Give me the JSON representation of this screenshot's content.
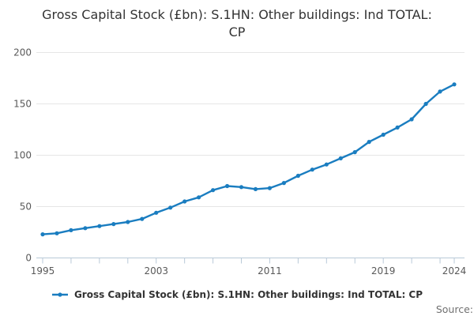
{
  "title": "Gross Capital Stock (£bn): S.1HN: Other buildings: Ind TOTAL: CP",
  "legend": {
    "label": "Gross Capital Stock (£bn): S.1HN: Other buildings: Ind TOTAL: CP"
  },
  "source_label": "Source:",
  "colors": {
    "line": "#1a7dc0",
    "grid": "#e6e6e6",
    "axis": "#b9c9d8",
    "tick_label": "#595959",
    "title_text": "#333333",
    "legend_text": "#333333",
    "source_text": "#707070"
  },
  "chart_data": {
    "type": "line",
    "title": "Gross Capital Stock (£bn): S.1HN: Other buildings: Ind TOTAL: CP",
    "xlabel": "",
    "ylabel": "",
    "x": [
      1995,
      1996,
      1997,
      1998,
      1999,
      2000,
      2001,
      2002,
      2003,
      2004,
      2005,
      2006,
      2007,
      2008,
      2009,
      2010,
      2011,
      2012,
      2013,
      2014,
      2015,
      2016,
      2017,
      2018,
      2019,
      2020,
      2021,
      2022,
      2023,
      2024
    ],
    "series": [
      {
        "name": "Gross Capital Stock (£bn): S.1HN: Other buildings: Ind TOTAL: CP",
        "values": [
          23,
          24,
          27,
          29,
          31,
          33,
          35,
          38,
          44,
          49,
          55,
          59,
          66,
          70,
          69,
          67,
          68,
          73,
          80,
          86,
          91,
          97,
          103,
          113,
          120,
          127,
          135,
          150,
          162,
          169
        ]
      }
    ],
    "xlim": [
      1995,
      2024
    ],
    "ylim": [
      0,
      200
    ],
    "yticks": [
      0,
      50,
      100,
      150,
      200
    ],
    "xtick_labels": [
      1995,
      2003,
      2011,
      2019,
      2024
    ],
    "minor_xtick_step": 2,
    "grid": "horizontal",
    "legend_position": "bottom",
    "marker": "circle"
  }
}
